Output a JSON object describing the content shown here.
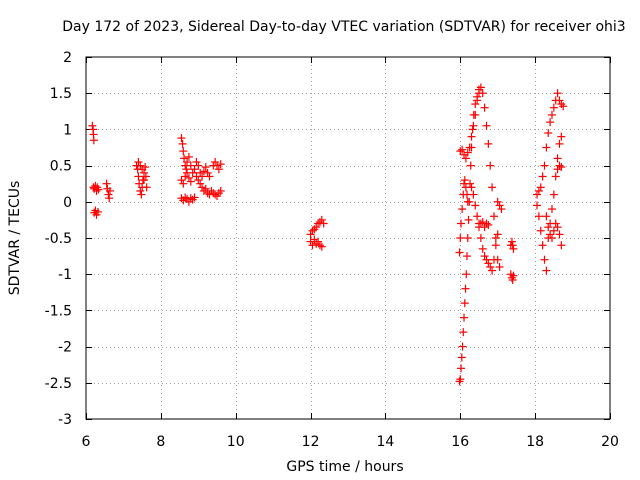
{
  "chart_data": {
    "type": "scatter",
    "title": "Day 172 of 2023, Sidereal Day-to-day VTEC variation (SDTVAR) for receiver ohi3",
    "xlabel": "GPS time / hours",
    "ylabel": "SDTVAR / TECUs",
    "xlim": [
      6,
      20
    ],
    "ylim": [
      -3,
      2
    ],
    "xticks": [
      6,
      8,
      10,
      12,
      14,
      16,
      18,
      20
    ],
    "xtick_labels": [
      "6",
      "8",
      "10",
      "12",
      "14",
      "16",
      "18",
      "20"
    ],
    "yticks": [
      2,
      1.5,
      1,
      0.5,
      0,
      -0.5,
      -1,
      -1.5,
      -2,
      -2.5,
      -3
    ],
    "ytick_labels": [
      "2",
      "1.5",
      "1",
      "0.5",
      "0",
      "-0.5",
      "-1",
      "-1.5",
      "-2",
      "-2.5",
      "-3"
    ],
    "grid": true,
    "marker": "+",
    "marker_color": "#ff0000",
    "series": [
      {
        "name": "SDTVAR",
        "segments": [
          {
            "x": [
              6.17,
              6.19,
              6.2,
              6.21
            ],
            "y": [
              1.05,
              1.0,
              0.93,
              0.85
            ]
          },
          {
            "x": [
              6.2,
              6.22,
              6.25,
              6.28,
              6.3,
              6.33
            ],
            "y": [
              0.2,
              0.18,
              0.22,
              0.15,
              0.2,
              0.17
            ]
          },
          {
            "x": [
              6.22,
              6.25,
              6.28,
              6.32
            ],
            "y": [
              -0.15,
              -0.12,
              -0.18,
              -0.14
            ]
          },
          {
            "x": [
              6.55,
              6.57,
              6.6,
              6.62,
              6.64
            ],
            "y": [
              0.25,
              0.18,
              0.1,
              0.05,
              0.15
            ]
          },
          {
            "x": [
              7.35,
              7.38,
              7.4,
              7.42,
              7.45,
              7.48,
              7.5,
              7.52,
              7.55,
              7.58,
              7.6,
              7.62,
              7.4,
              7.45,
              7.5,
              7.55
            ],
            "y": [
              0.5,
              0.45,
              0.35,
              0.25,
              0.15,
              0.1,
              0.2,
              0.3,
              0.4,
              0.48,
              0.35,
              0.2,
              0.55,
              0.5,
              0.45,
              0.3
            ]
          },
          {
            "x": [
              8.55,
              8.58,
              8.6,
              8.62,
              8.65,
              8.68,
              8.7,
              8.75,
              8.8,
              8.85,
              8.9,
              8.95,
              9.0,
              9.05,
              9.1,
              9.15,
              9.2,
              9.25,
              9.3
            ],
            "y": [
              0.88,
              0.8,
              0.7,
              0.6,
              0.5,
              0.45,
              0.55,
              0.62,
              0.5,
              0.4,
              0.45,
              0.55,
              0.5,
              0.4,
              0.35,
              0.42,
              0.48,
              0.4,
              0.35
            ]
          },
          {
            "x": [
              8.55,
              8.6,
              8.65,
              8.7,
              8.75,
              8.8,
              8.85,
              8.9
            ],
            "y": [
              0.05,
              0.02,
              0.06,
              0.04,
              0.0,
              0.05,
              0.03,
              0.06
            ]
          },
          {
            "x": [
              8.55,
              8.6,
              8.65,
              8.7,
              8.75,
              8.8
            ],
            "y": [
              0.3,
              0.25,
              0.35,
              0.4,
              0.33,
              0.28
            ]
          },
          {
            "x": [
              8.95,
              9.0,
              9.05,
              9.1,
              9.15,
              9.2,
              9.25,
              9.3,
              9.35,
              9.4,
              9.45,
              9.5,
              9.55,
              9.6
            ],
            "y": [
              0.35,
              0.3,
              0.25,
              0.2,
              0.15,
              0.18,
              0.12,
              0.1,
              0.15,
              0.12,
              0.1,
              0.08,
              0.12,
              0.15
            ]
          },
          {
            "x": [
              9.4,
              9.45,
              9.5,
              9.55,
              9.6
            ],
            "y": [
              0.5,
              0.55,
              0.5,
              0.45,
              0.52
            ]
          },
          {
            "x": [
              12.0,
              12.05,
              12.1,
              12.15,
              12.2,
              12.25,
              12.3,
              12.35
            ],
            "y": [
              -0.45,
              -0.4,
              -0.38,
              -0.35,
              -0.3,
              -0.28,
              -0.25,
              -0.3
            ]
          },
          {
            "x": [
              12.0,
              12.05,
              12.1,
              12.15,
              12.2,
              12.25,
              12.3
            ],
            "y": [
              -0.55,
              -0.6,
              -0.52,
              -0.58,
              -0.55,
              -0.6,
              -0.62
            ]
          },
          {
            "x": [
              15.98,
              16.0,
              16.02,
              16.04,
              16.06,
              16.08,
              16.1,
              16.12,
              16.14,
              16.16,
              16.18,
              16.2,
              16.22,
              16.24,
              16.26
            ],
            "y": [
              -2.48,
              -2.45,
              -2.3,
              -2.15,
              -2.0,
              -1.8,
              -1.6,
              -1.4,
              -1.2,
              -1.0,
              -0.75,
              -0.5,
              -0.25,
              0.0,
              0.25
            ]
          },
          {
            "x": [
              16.28,
              16.3,
              16.33,
              16.36,
              16.4,
              16.45,
              16.5,
              16.55,
              16.6,
              16.65,
              16.7,
              16.75,
              16.8,
              16.85,
              16.9,
              16.95,
              17.0,
              17.05
            ],
            "y": [
              0.5,
              0.75,
              1.0,
              1.2,
              1.35,
              1.45,
              1.55,
              1.58,
              1.5,
              1.3,
              1.05,
              0.8,
              0.5,
              0.2,
              -0.2,
              -0.5,
              -0.8,
              -0.9
            ]
          },
          {
            "x": [
              16.0,
              16.05,
              16.1,
              16.15,
              16.2,
              16.25,
              16.3,
              16.35,
              16.4,
              16.45,
              16.5
            ],
            "y": [
              0.7,
              0.72,
              0.65,
              0.6,
              0.68,
              0.75,
              0.9,
              1.05,
              1.2,
              1.4,
              1.5
            ]
          },
          {
            "x": [
              15.98,
              16.0,
              16.02,
              16.05,
              16.08,
              16.1,
              16.12,
              16.15,
              16.18,
              16.2
            ],
            "y": [
              -0.7,
              -0.5,
              -0.3,
              -0.1,
              0.1,
              0.25,
              0.3,
              0.2,
              0.1,
              0.0
            ]
          },
          {
            "x": [
              16.3,
              16.35,
              16.4,
              16.45,
              16.5,
              16.55,
              16.6,
              16.65,
              16.7,
              16.75,
              16.8,
              16.85,
              16.9,
              16.95,
              17.0
            ],
            "y": [
              0.2,
              0.1,
              -0.05,
              -0.2,
              -0.35,
              -0.5,
              -0.65,
              -0.75,
              -0.8,
              -0.85,
              -0.9,
              -0.95,
              -0.8,
              -0.6,
              -0.45
            ]
          },
          {
            "x": [
              16.5,
              16.55,
              16.6,
              16.65,
              16.7,
              16.75
            ],
            "y": [
              -0.3,
              -0.3,
              -0.28,
              -0.35,
              -0.3,
              -0.32
            ]
          },
          {
            "x": [
              17.0,
              17.05,
              17.1
            ],
            "y": [
              0.0,
              -0.05,
              -0.1
            ]
          },
          {
            "x": [
              17.35,
              17.38,
              17.4,
              17.42
            ],
            "y": [
              -0.6,
              -0.55,
              -0.6,
              -0.65
            ]
          },
          {
            "x": [
              17.35,
              17.38,
              17.4,
              17.42
            ],
            "y": [
              -1.0,
              -1.05,
              -1.08,
              -1.02
            ]
          },
          {
            "x": [
              18.05,
              18.1,
              18.15,
              18.2,
              18.25,
              18.3,
              18.35,
              18.4,
              18.45,
              18.5,
              18.55,
              18.6,
              18.65,
              18.7,
              18.75
            ],
            "y": [
              0.1,
              0.15,
              0.2,
              0.35,
              0.5,
              0.75,
              0.95,
              1.1,
              1.2,
              1.3,
              1.4,
              1.5,
              1.4,
              1.35,
              1.32
            ]
          },
          {
            "x": [
              18.05,
              18.1,
              18.15,
              18.2,
              18.25,
              18.3,
              18.35,
              18.4,
              18.45,
              18.5,
              18.55,
              18.6,
              18.65,
              18.7
            ],
            "y": [
              -0.05,
              -0.2,
              -0.4,
              -0.6,
              -0.8,
              -0.95,
              -0.5,
              -0.3,
              -0.1,
              0.1,
              0.35,
              0.6,
              0.8,
              0.9
            ]
          },
          {
            "x": [
              18.3,
              18.35,
              18.4,
              18.45,
              18.5,
              18.55,
              18.6,
              18.65,
              18.7
            ],
            "y": [
              -0.2,
              -0.35,
              -0.45,
              -0.5,
              -0.4,
              -0.3,
              -0.35,
              -0.45,
              -0.6
            ]
          },
          {
            "x": [
              18.6,
              18.65,
              18.7
            ],
            "y": [
              0.45,
              0.5,
              0.48
            ]
          }
        ]
      }
    ]
  }
}
